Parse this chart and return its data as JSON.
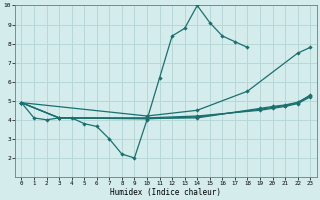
{
  "background_color": "#d4ecec",
  "grid_color": "#b8d8d8",
  "line_color": "#1a7070",
  "xlabel": "Humidex (Indice chaleur)",
  "ylim": [
    1,
    10
  ],
  "xlim": [
    -0.5,
    23.5
  ],
  "yticks": [
    2,
    3,
    4,
    5,
    6,
    7,
    8,
    9,
    10
  ],
  "xticks": [
    0,
    1,
    2,
    3,
    4,
    5,
    6,
    7,
    8,
    9,
    10,
    11,
    12,
    13,
    14,
    15,
    16,
    17,
    18,
    19,
    20,
    21,
    22,
    23
  ],
  "series": [
    {
      "x": [
        0,
        1,
        2,
        3,
        4,
        5,
        6,
        7,
        8,
        9,
        10,
        11,
        12,
        13,
        14,
        15,
        16,
        17,
        18
      ],
      "y": [
        4.9,
        4.1,
        4.0,
        4.1,
        4.1,
        3.8,
        3.65,
        3.0,
        2.2,
        2.0,
        4.0,
        6.2,
        8.4,
        8.8,
        10.0,
        9.1,
        8.4,
        8.1,
        7.8
      ]
    },
    {
      "x": [
        0,
        10,
        14,
        18,
        22,
        23
      ],
      "y": [
        4.9,
        4.2,
        4.5,
        5.5,
        7.5,
        7.8
      ]
    },
    {
      "x": [
        0,
        3,
        10,
        14,
        19,
        20,
        21,
        22,
        23
      ],
      "y": [
        4.9,
        4.1,
        4.1,
        4.2,
        4.5,
        4.6,
        4.7,
        4.85,
        5.2
      ]
    },
    {
      "x": [
        0,
        3,
        10,
        14,
        19,
        20,
        21,
        22,
        23
      ],
      "y": [
        4.9,
        4.1,
        4.05,
        4.15,
        4.55,
        4.65,
        4.75,
        4.9,
        5.3
      ]
    },
    {
      "x": [
        0,
        3,
        10,
        14,
        19,
        20,
        21,
        22,
        23
      ],
      "y": [
        4.9,
        4.1,
        4.08,
        4.1,
        4.6,
        4.7,
        4.78,
        4.92,
        5.25
      ]
    }
  ]
}
